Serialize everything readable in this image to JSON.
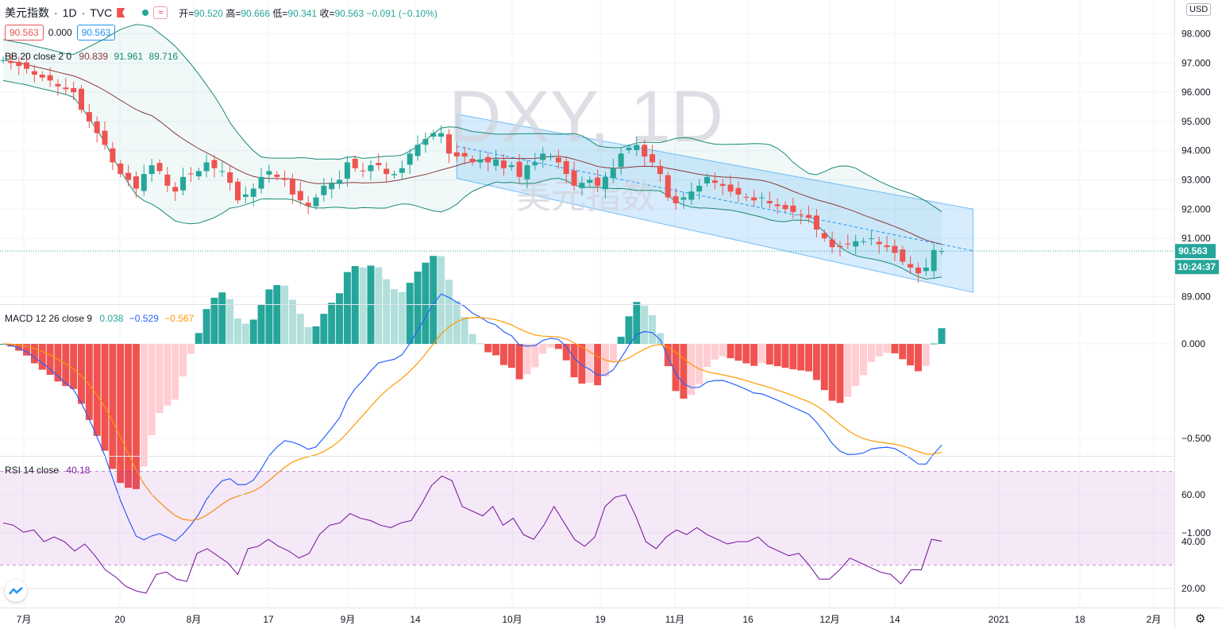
{
  "symbol": {
    "name": "美元指数",
    "interval": "1D",
    "exchange": "TVC",
    "sep": "·"
  },
  "ohlc": {
    "o_label": "开=",
    "o": "90.520",
    "h_label": "高=",
    "h": "90.666",
    "l_label": "低=",
    "l": "90.341",
    "c_label": "收=",
    "c": "90.563",
    "chg": "−0.091 (−0.10%)"
  },
  "price_boxes": {
    "bid": "90.563",
    "spread": "0.000",
    "ask": "90.563"
  },
  "watermark": {
    "title": "DXY, 1D",
    "subtitle": "美元指数"
  },
  "currency": "USD",
  "last_price": {
    "value": "90.563",
    "countdown": "10:24:37"
  },
  "colors": {
    "up": "#26a69a",
    "down": "#ef5350",
    "bb_band": "#1b8a73",
    "bb_basis": "#8b3a3a",
    "macd_line": "#2962ff",
    "signal_line": "#ff9800",
    "rsi_line": "#7b1fa2",
    "channel": "#2196f3"
  },
  "chart_data": [
    {
      "type": "candlestick",
      "title": "DXY",
      "price_axis": {
        "ticks": [
          "98.000",
          "97.000",
          "96.000",
          "95.000",
          "94.000",
          "93.000",
          "92.000",
          "91.000",
          "89.000"
        ],
        "ylim": [
          89.0,
          98.0
        ]
      },
      "time_axis": [
        "7月",
        "20",
        "8月",
        "17",
        "9月",
        "14",
        "10月",
        "19",
        "11月",
        "16",
        "12月",
        "14",
        "2021",
        "18",
        "2月"
      ],
      "close": [
        97.1,
        97.0,
        96.9,
        96.8,
        96.6,
        96.5,
        96.4,
        96.2,
        96.1,
        96.0,
        95.4,
        95.0,
        94.6,
        94.2,
        93.6,
        93.2,
        93.0,
        92.7,
        93.2,
        93.5,
        93.3,
        92.8,
        92.6,
        93.1,
        93.2,
        93.3,
        93.6,
        93.4,
        93.3,
        92.9,
        92.3,
        92.5,
        92.7,
        93.1,
        93.3,
        93.1,
        93.0,
        92.5,
        92.3,
        92.1,
        92.4,
        92.8,
        92.9,
        93.0,
        93.6,
        93.4,
        93.3,
        93.5,
        93.5,
        93.2,
        93.2,
        93.4,
        93.9,
        94.2,
        94.4,
        94.6,
        94.6,
        93.9,
        93.8,
        93.8,
        93.6,
        93.7,
        93.6,
        93.7,
        93.4,
        93.5,
        93.1,
        93.5,
        93.6,
        93.9,
        93.8,
        93.6,
        93.2,
        92.8,
        92.9,
        93.0,
        92.8,
        93.1,
        93.4,
        93.9,
        94.1,
        94.2,
        93.8,
        93.6,
        93.2,
        92.4,
        92.2,
        92.4,
        92.6,
        92.8,
        93.1,
        92.9,
        92.8,
        92.6,
        92.5,
        92.4,
        92.3,
        92.4,
        92.2,
        92.1,
        92.0,
        91.9,
        91.8,
        91.7,
        91.3,
        91.0,
        90.7,
        90.7,
        90.8,
        90.9,
        90.9,
        91.0,
        90.8,
        90.7,
        90.5,
        90.2,
        90.0,
        89.8,
        90.0,
        90.6,
        90.563
      ]
    },
    {
      "type": "line",
      "title": "BB",
      "legend": {
        "label": "BB 20 close 2 0",
        "basis": "90.839",
        "upper": "91.961",
        "lower": "89.716"
      }
    },
    {
      "type": "histogram+line",
      "title": "MACD",
      "legend": {
        "label": "MACD 12 26 close 9",
        "hist": "0.038",
        "macd": "−0.529",
        "signal": "−0.567"
      },
      "y_ticks": [
        "0.000",
        "−0.500",
        "−1.000"
      ],
      "ylim": [
        -1.1,
        0.3
      ]
    },
    {
      "type": "line",
      "title": "RSI",
      "legend": {
        "label": "RSI 14 close",
        "value": "40.18"
      },
      "y_ticks": [
        "60.00",
        "40.00",
        "20.00"
      ],
      "ylim": [
        15,
        72
      ],
      "band": [
        30,
        70
      ],
      "values": [
        48,
        47,
        44,
        45,
        40,
        42,
        40,
        36,
        39,
        34,
        28,
        25,
        21,
        19,
        18,
        26,
        27,
        24,
        23,
        35,
        37,
        34,
        31,
        26,
        37,
        38,
        41,
        38,
        36,
        33,
        35,
        43,
        47,
        48,
        52,
        50,
        49,
        47,
        46,
        48,
        49,
        56,
        64,
        68,
        66,
        55,
        53,
        51,
        55,
        47,
        50,
        43,
        41,
        47,
        55,
        48,
        41,
        38,
        42,
        55,
        59,
        60,
        51,
        40,
        37,
        42,
        45,
        43,
        46,
        43,
        41,
        39,
        40,
        40,
        42,
        38,
        36,
        34,
        35,
        30,
        24,
        24,
        28,
        33,
        31,
        29,
        27,
        26,
        22,
        28,
        28,
        41,
        40.18
      ]
    }
  ]
}
